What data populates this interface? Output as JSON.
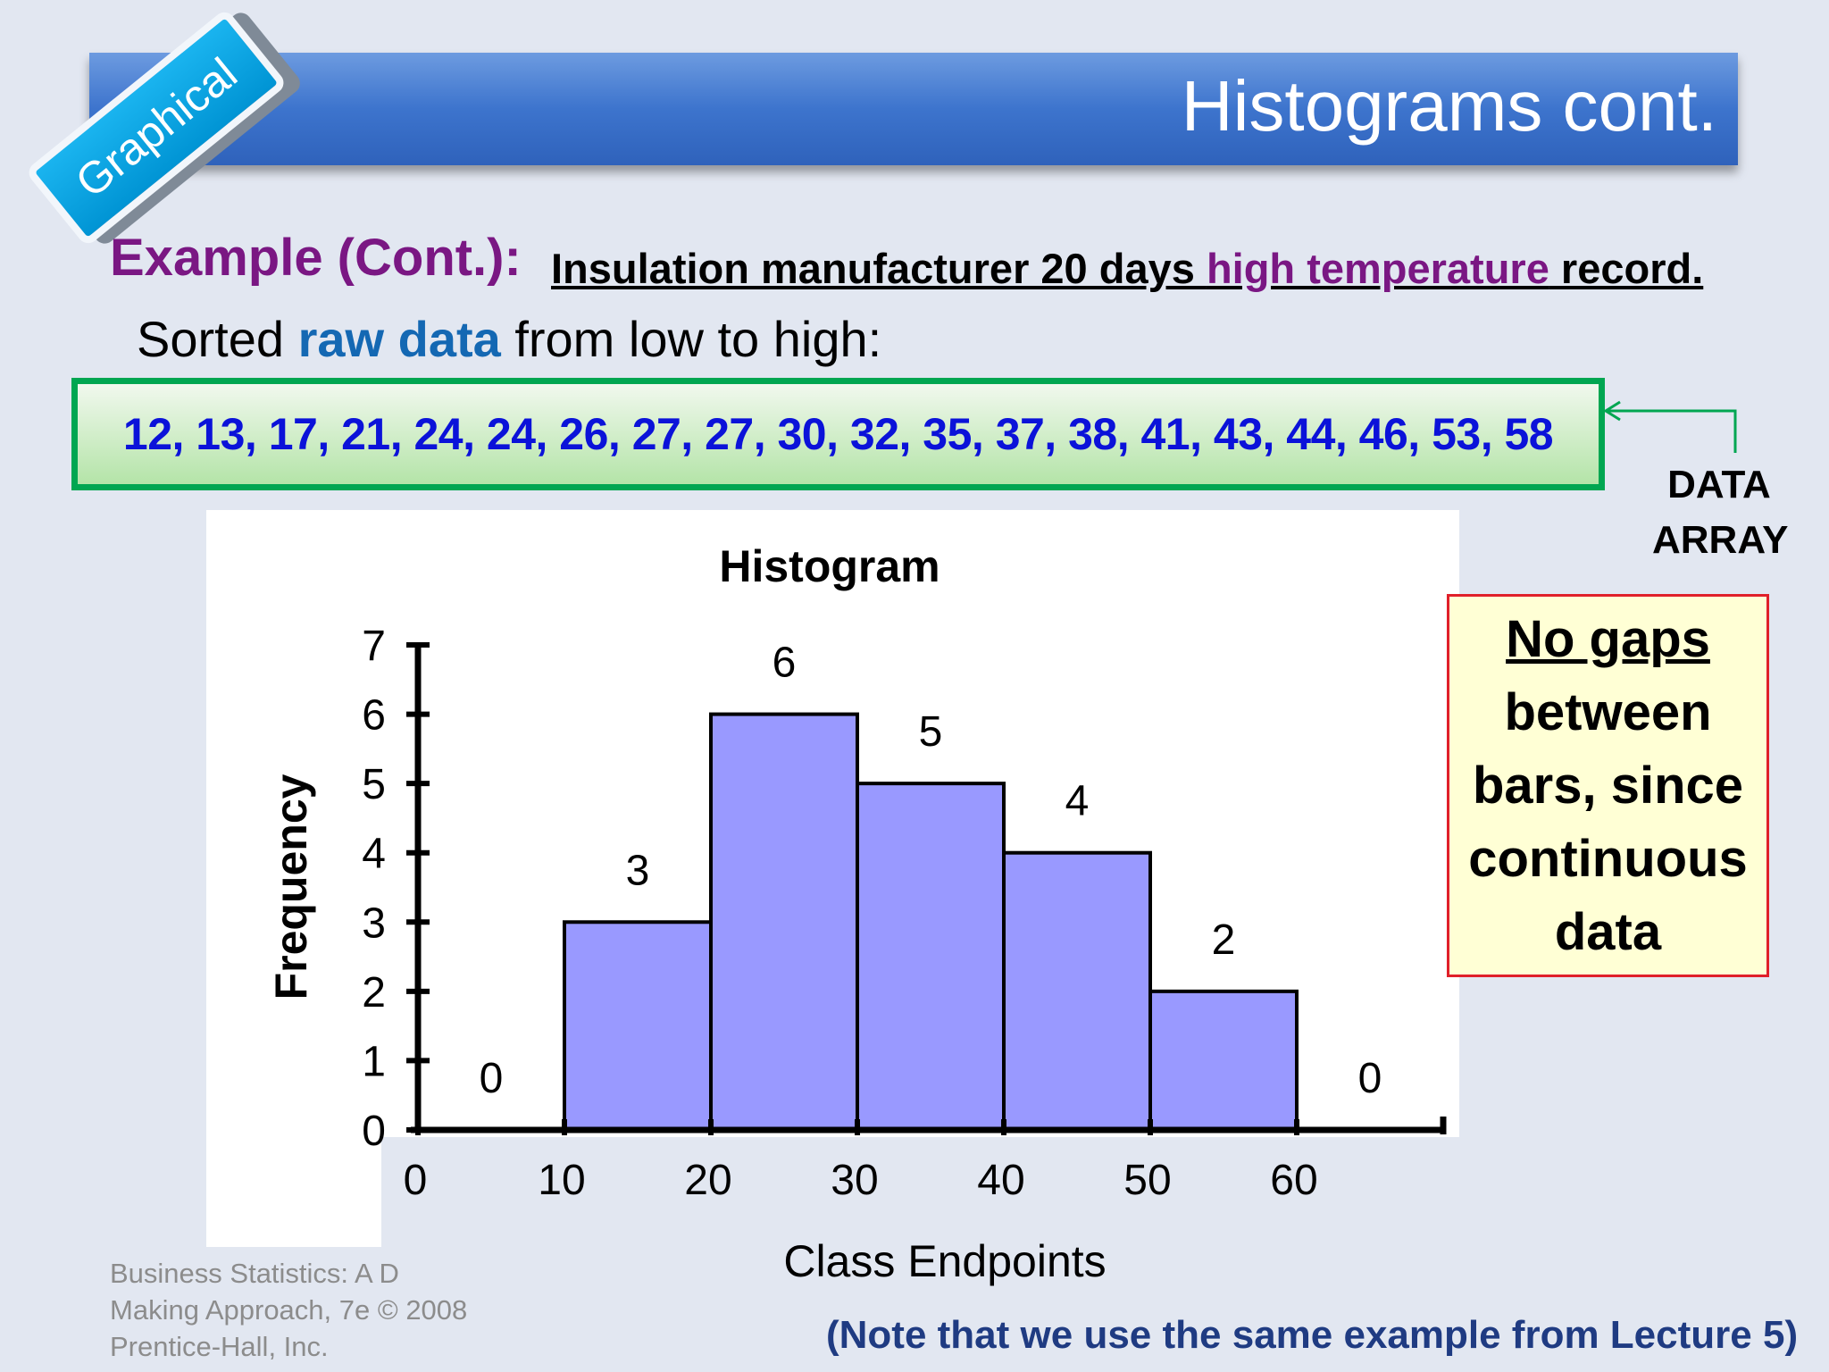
{
  "slide": {
    "title": "Histograms cont.",
    "tag": "Graphical",
    "example_label": "Example (Cont.):",
    "example_desc_pre": "Insulation manufacturer 20 days ",
    "example_desc_hl": "high temperature",
    "example_desc_post": " record.",
    "sorted_pre": "Sorted ",
    "sorted_hl": "raw data",
    "sorted_post": " from low to high:",
    "data_array_values": "12, 13, 17, 21, 24, 24, 26, 27, 27, 30, 32, 35, 37, 38, 41, 43, 44, 46, 53, 58",
    "data_array_label_line1": "DATA",
    "data_array_label_line2": "ARRAY",
    "note_line1": "No gaps",
    "note_line2": "between",
    "note_line3": "bars, since",
    "note_line4": "continuous",
    "note_line5": "data",
    "citation_line1": "Business Statistics: A D",
    "citation_line2": "Making Approach, 7e © 2008",
    "citation_line3": "Prentice-Hall, Inc.",
    "footer_note": "(Note that we use the same example from Lecture 5)"
  },
  "colors": {
    "bar_fill": "#9999ff",
    "title_banner": "#3d74cd",
    "accent_purple": "#7a1783",
    "data_blue": "#0b12d9",
    "note_border": "#e0202a",
    "frame_green": "#00a651"
  },
  "chart_data": {
    "type": "bar",
    "title": "Histogram",
    "xlabel": "Class Endpoints",
    "ylabel": "Frequency",
    "bins": [
      [
        0,
        10
      ],
      [
        10,
        20
      ],
      [
        20,
        30
      ],
      [
        30,
        40
      ],
      [
        40,
        50
      ],
      [
        50,
        60
      ],
      [
        60,
        70
      ]
    ],
    "values": [
      0,
      3,
      6,
      5,
      4,
      2,
      0
    ],
    "data_labels": [
      "0",
      "3",
      "6",
      "5",
      "4",
      "2",
      "0"
    ],
    "x_ticks": [
      0,
      10,
      20,
      30,
      40,
      50,
      60
    ],
    "y_ticks": [
      0,
      1,
      2,
      3,
      4,
      5,
      6,
      7
    ],
    "xlim": [
      0,
      70
    ],
    "ylim": [
      0,
      7
    ],
    "grid": false,
    "legend": "none"
  }
}
